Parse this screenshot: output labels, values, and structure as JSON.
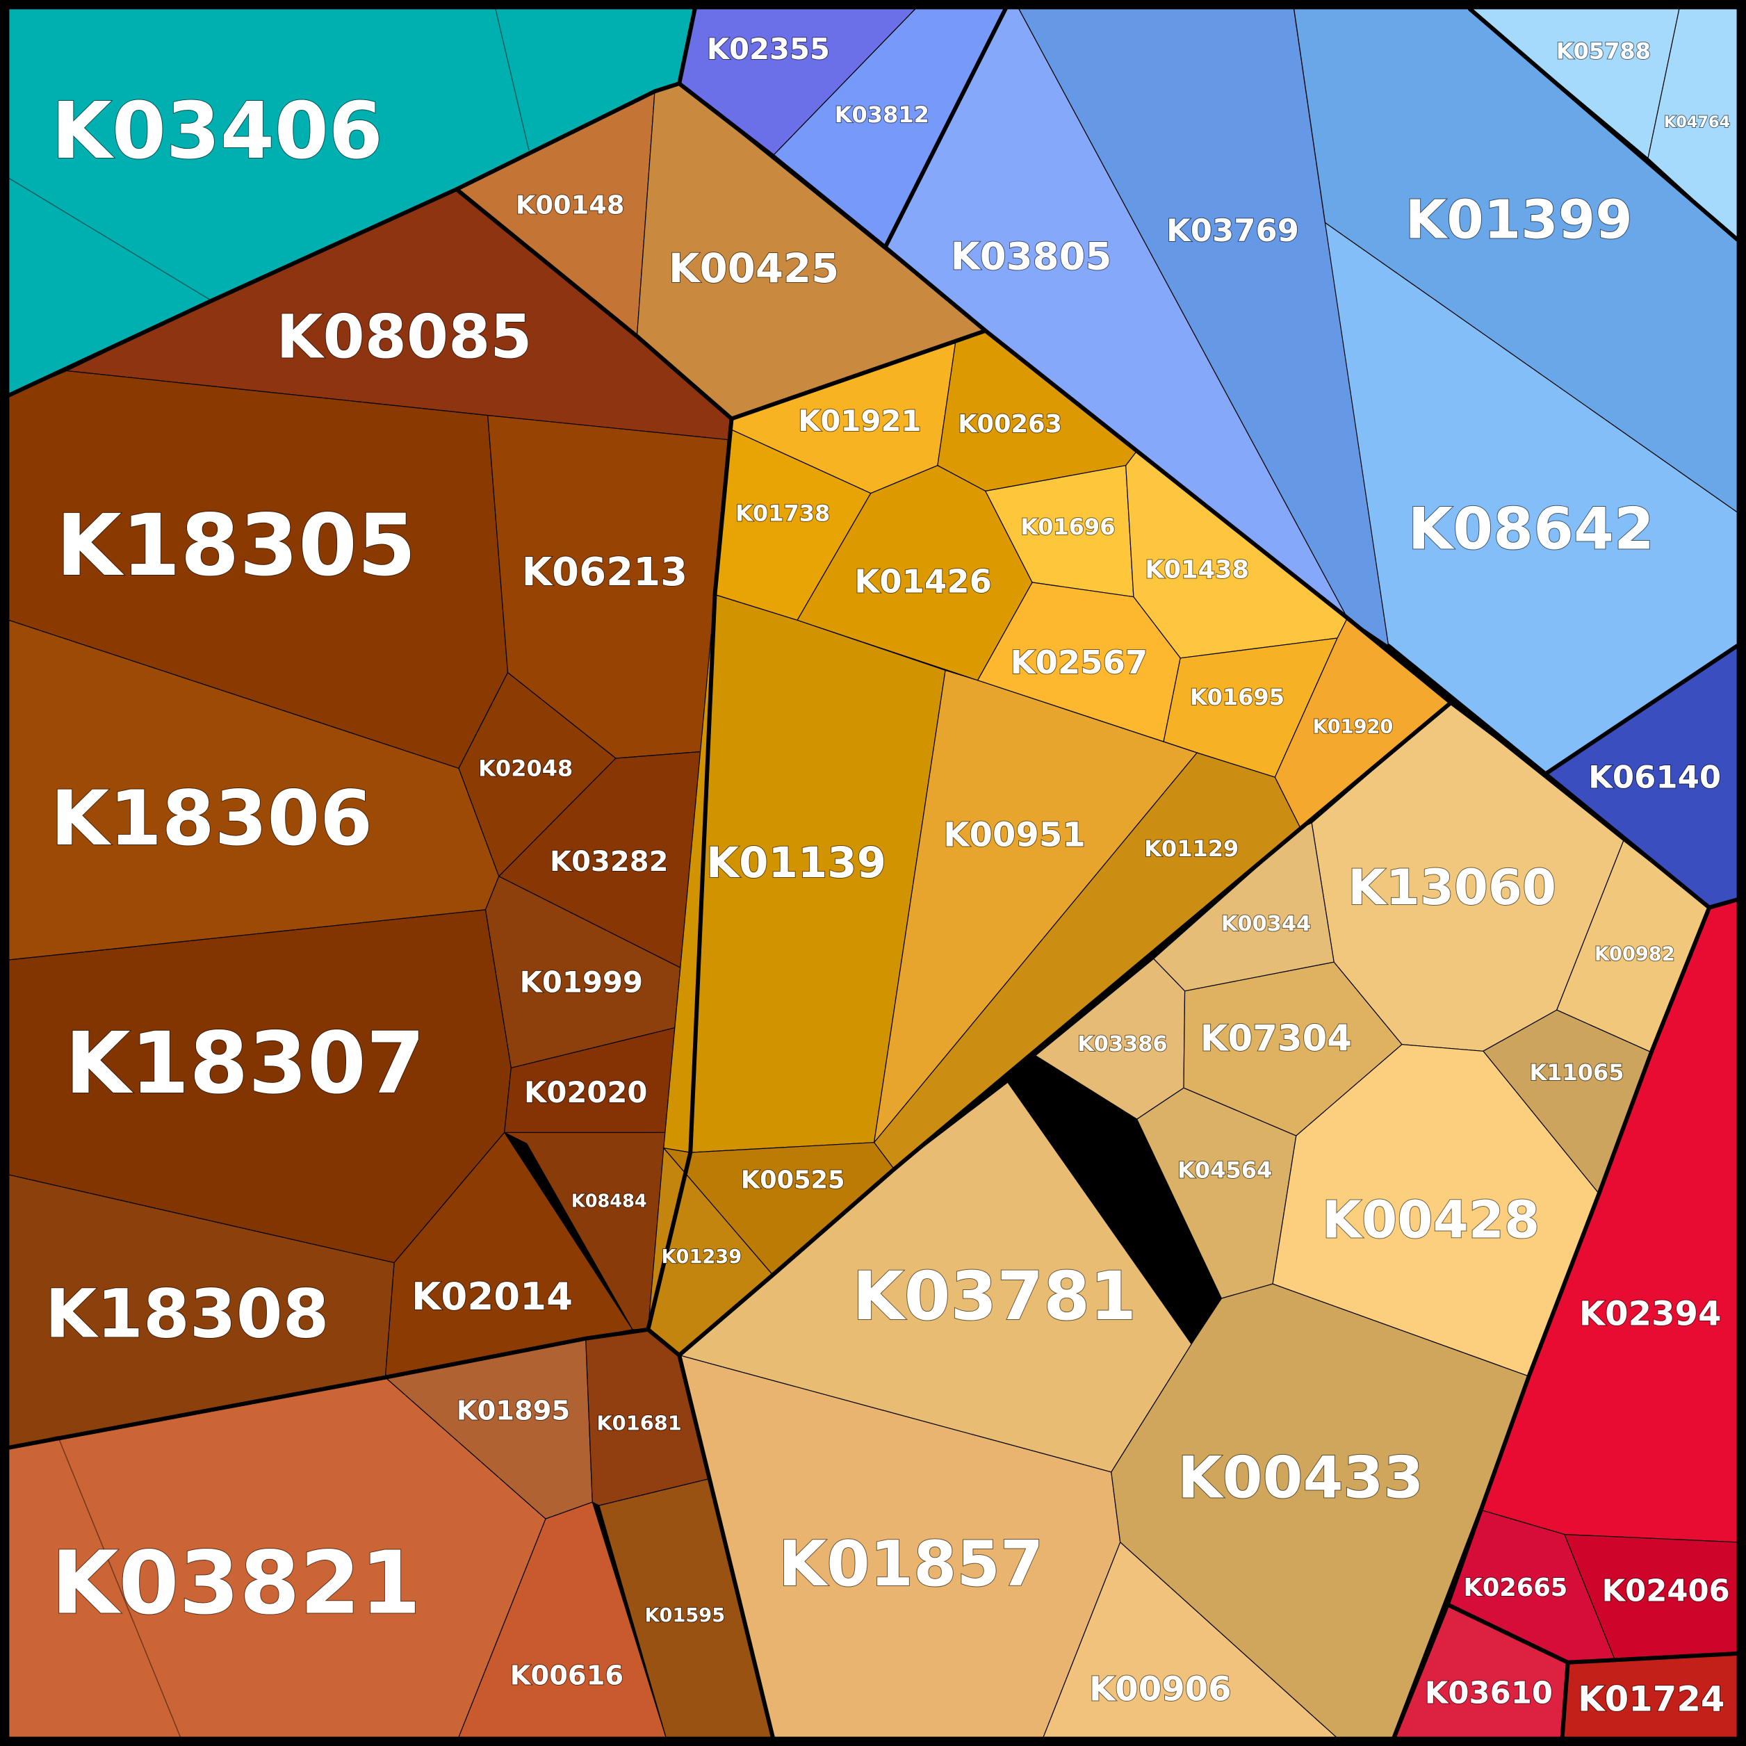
{
  "cells": [
    {
      "label": "K03406",
      "color": "#00b0b0"
    },
    {
      "label": "K02355",
      "color": "#6b70e8"
    },
    {
      "label": "K03812",
      "color": "#7799fa"
    },
    {
      "label": "K03805",
      "color": "#85a8fb"
    },
    {
      "label": "K03769",
      "color": "#6598e5"
    },
    {
      "label": "K01399",
      "color": "#6aa7e9"
    },
    {
      "label": "K05788",
      "color": "#a6dafd"
    },
    {
      "label": "K04764",
      "color": "#a6dafd"
    },
    {
      "label": "K08642",
      "color": "#84bef9"
    },
    {
      "label": "K06140",
      "color": "#3a4ec0"
    },
    {
      "label": "K00148",
      "color": "#c47535"
    },
    {
      "label": "K00425",
      "color": "#c98a40"
    },
    {
      "label": "K08085",
      "color": "#8f3411"
    },
    {
      "label": "K18305",
      "color": "#8a3a00"
    },
    {
      "label": "K06213",
      "color": "#974304"
    },
    {
      "label": "K02048",
      "color": "#8c3b03"
    },
    {
      "label": "K03282",
      "color": "#883603"
    },
    {
      "label": "K18306",
      "color": "#9c4a05"
    },
    {
      "label": "K01999",
      "color": "#8d400b"
    },
    {
      "label": "K18307",
      "color": "#823500"
    },
    {
      "label": "K02020",
      "color": "#853204"
    },
    {
      "label": "K08484",
      "color": "#8a3b0a"
    },
    {
      "label": "K02014",
      "color": "#8c3b02"
    },
    {
      "label": "K18308",
      "color": "#8c410c"
    },
    {
      "label": "K01895",
      "color": "#b06232"
    },
    {
      "label": "K01681",
      "color": "#913e10"
    },
    {
      "label": "K03821",
      "color": "#cc6535"
    },
    {
      "label": "K00616",
      "color": "#c95a2d"
    },
    {
      "label": "K01595",
      "color": "#9a5212"
    },
    {
      "label": "K01921",
      "color": "#f7b321"
    },
    {
      "label": "K00263",
      "color": "#dc9901"
    },
    {
      "label": "K01738",
      "color": "#e8a305"
    },
    {
      "label": "K01426",
      "color": "#dc9900"
    },
    {
      "label": "K01696",
      "color": "#fec73b"
    },
    {
      "label": "K01438",
      "color": "#fec53e"
    },
    {
      "label": "K02567",
      "color": "#feb82f"
    },
    {
      "label": "K01695",
      "color": "#f6b125"
    },
    {
      "label": "K01920",
      "color": "#f4a82d"
    },
    {
      "label": "K01139",
      "color": "#d19300"
    },
    {
      "label": "K00951",
      "color": "#e8a52e"
    },
    {
      "label": "K01129",
      "color": "#cc8d13"
    },
    {
      "label": "K00525",
      "color": "#bb7b04"
    },
    {
      "label": "K01239",
      "color": "#c3850d"
    },
    {
      "label": "K13060",
      "color": "#f0c77c"
    },
    {
      "label": "K00982",
      "color": "#f0c77b"
    },
    {
      "label": "K00344",
      "color": "#e5bd77"
    },
    {
      "label": "K03386",
      "color": "#e5bb76"
    },
    {
      "label": "K07304",
      "color": "#dfb262"
    },
    {
      "label": "K11065",
      "color": "#cda45d"
    },
    {
      "label": "K04564",
      "color": "#dab166"
    },
    {
      "label": "K00428",
      "color": "#fccf7f"
    },
    {
      "label": "K03781",
      "color": "#e8bc72"
    },
    {
      "label": "K01857",
      "color": "#e9b470"
    },
    {
      "label": "K00433",
      "color": "#cfa65c"
    },
    {
      "label": "K00906",
      "color": "#f0c27c"
    },
    {
      "label": "K02394",
      "color": "#e80c33"
    },
    {
      "label": "K02665",
      "color": "#d50d38"
    },
    {
      "label": "K02406",
      "color": "#ce042a"
    },
    {
      "label": "K03610",
      "color": "#dc2240"
    },
    {
      "label": "K01724",
      "color": "#c4201a"
    }
  ]
}
